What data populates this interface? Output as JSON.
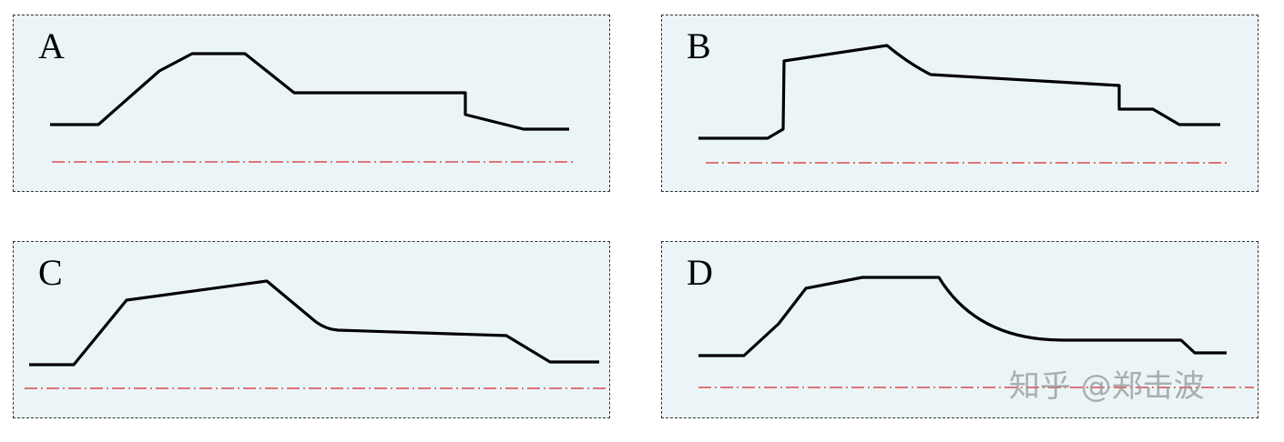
{
  "panels": [
    {
      "id": "a",
      "label": "A"
    },
    {
      "id": "b",
      "label": "B"
    },
    {
      "id": "c",
      "label": "C"
    },
    {
      "id": "d",
      "label": "D"
    }
  ],
  "watermark": "知乎 @郑击波",
  "colors": {
    "panel_background": "#ebf5f8",
    "profile_line": "#000000",
    "center_line": "#d62728",
    "panel_border": "#333333"
  }
}
